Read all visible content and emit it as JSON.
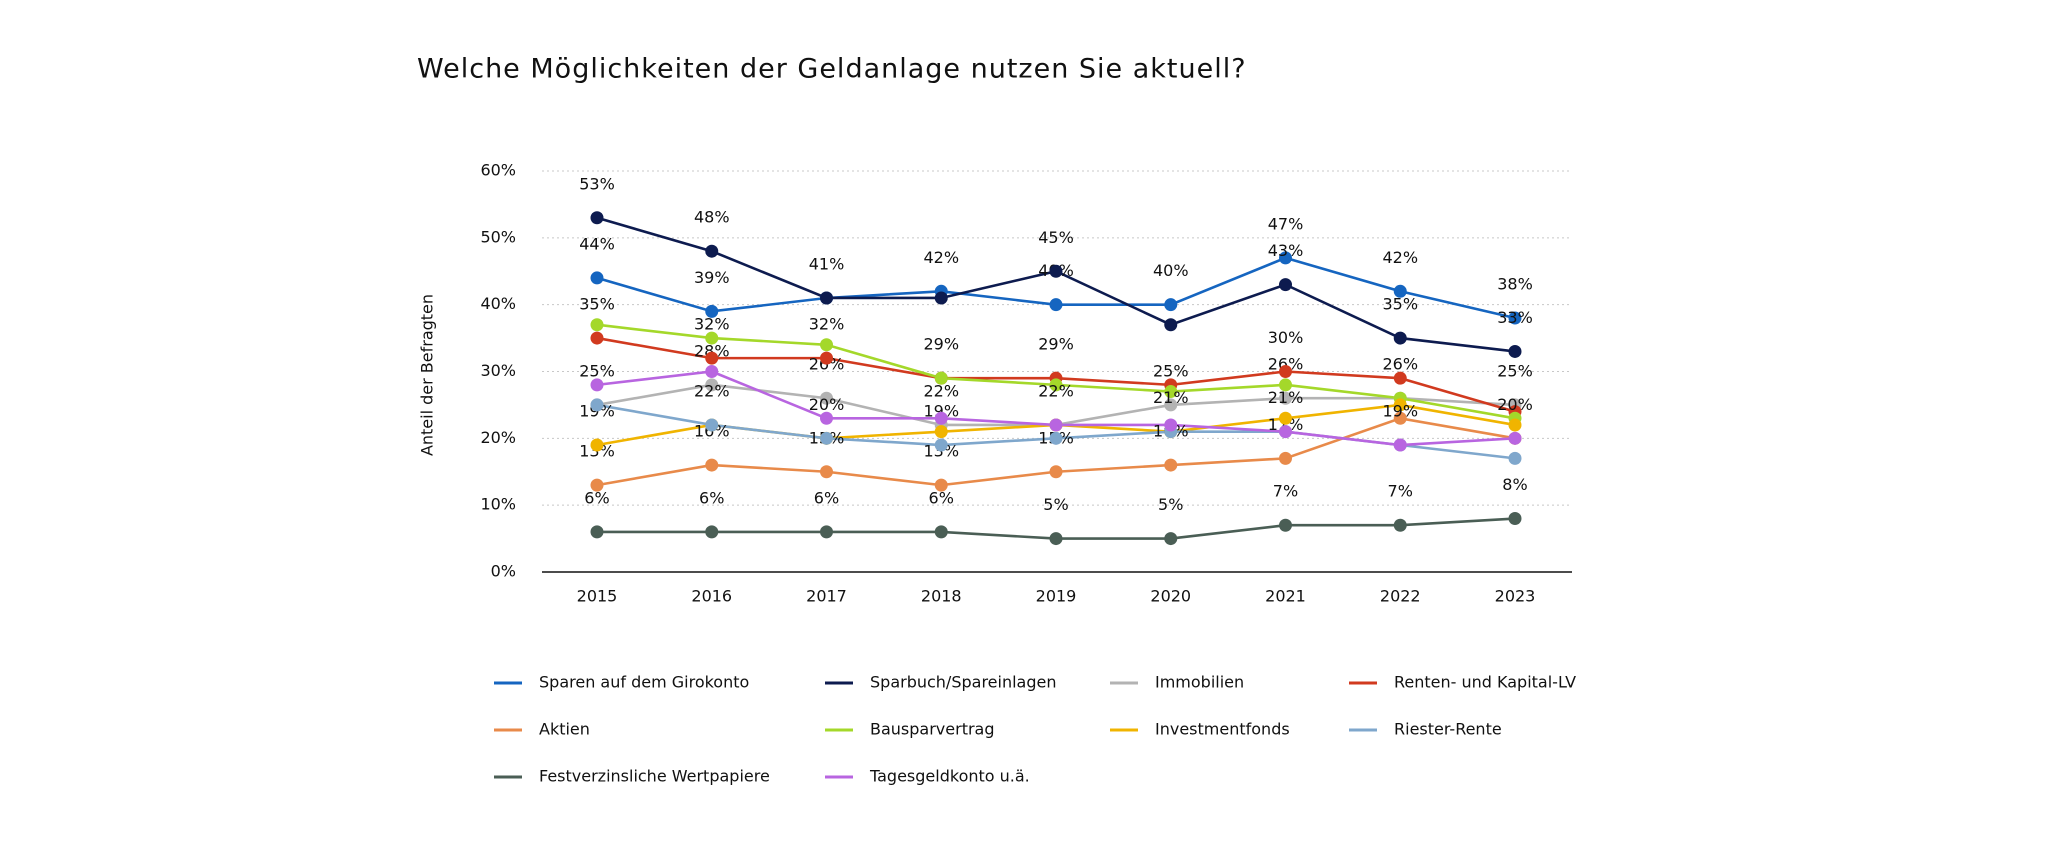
{
  "chart_data": {
    "type": "line",
    "title": "Welche Möglichkeiten der Geldanlage nutzen Sie aktuell?",
    "y_label": "Anteil der Befragten",
    "categories": [
      "2015",
      "2016",
      "2017",
      "2018",
      "2019",
      "2020",
      "2021",
      "2022",
      "2023"
    ],
    "ylim": [
      0,
      60
    ],
    "yticks": [
      {
        "value": 0,
        "label": "0%"
      },
      {
        "value": 10,
        "label": "10%"
      },
      {
        "value": 20,
        "label": "20%"
      },
      {
        "value": 30,
        "label": "30%"
      },
      {
        "value": 40,
        "label": "40%"
      },
      {
        "value": 50,
        "label": "50%"
      },
      {
        "value": 60,
        "label": "60%"
      }
    ],
    "grid": true,
    "legend": "bottom",
    "series": [
      {
        "name": "Sparen auf  dem Girokonto",
        "color": "#1565c0",
        "values": [
          44,
          39,
          41,
          42,
          40,
          40,
          47,
          42,
          38
        ],
        "value_labels": [
          "44%",
          "39%",
          null,
          "42%",
          "40%",
          "40%",
          "47%",
          "42%",
          "38%"
        ]
      },
      {
        "name": "Sparbuch/Spareinlagen",
        "color": "#0d1b4f",
        "values": [
          53,
          48,
          41,
          41,
          45,
          37,
          43,
          35,
          33
        ],
        "value_labels": [
          "53%",
          "48%",
          "41%",
          null,
          "45%",
          null,
          "43%",
          "35%",
          "33%"
        ]
      },
      {
        "name": "Immobilien",
        "color": "#b3b3b3",
        "values": [
          25,
          28,
          26,
          22,
          22,
          25,
          26,
          26,
          25
        ],
        "value_labels": [
          "25%",
          "28%",
          "26%",
          "22%",
          null,
          "25%",
          "26%",
          "26%",
          "25%"
        ]
      },
      {
        "name": "Renten- und Kapital-LV",
        "color": "#d13a1f",
        "values": [
          35,
          32,
          32,
          29,
          29,
          28,
          30,
          29,
          24
        ],
        "value_labels": [
          "35%",
          "32%",
          "32%",
          "29%",
          "29%",
          null,
          "30%",
          null,
          null
        ]
      },
      {
        "name": "Aktien",
        "color": "#e88a4a",
        "values": [
          13,
          16,
          15,
          13,
          15,
          16,
          17,
          23,
          20
        ],
        "value_labels": [
          "13%",
          "16%",
          "15%",
          "13%",
          "15%",
          "16%",
          "17%",
          null,
          "20%"
        ]
      },
      {
        "name": "Bausparvertrag",
        "color": "#a4d82a",
        "values": [
          37,
          35,
          34,
          29,
          28,
          27,
          28,
          26,
          23
        ]
      },
      {
        "name": "Investmentfonds",
        "color": "#f0b400",
        "values": [
          19,
          22,
          20,
          21,
          22,
          21,
          23,
          25,
          22
        ],
        "value_labels": [
          "19%",
          "22%",
          "20%",
          null,
          "22%",
          "21%",
          null,
          null,
          null
        ]
      },
      {
        "name": "Riester-Rente",
        "color": "#7fa7cc",
        "values": [
          25,
          22,
          20,
          19,
          20,
          21,
          21,
          19,
          17
        ],
        "value_labels": [
          null,
          null,
          null,
          "19%",
          null,
          null,
          "21%",
          "19%",
          null
        ]
      },
      {
        "name": "Festverzinsliche Wertpapiere",
        "color": "#4a5e55",
        "values": [
          6,
          6,
          6,
          6,
          5,
          5,
          7,
          7,
          8
        ],
        "value_labels": [
          "6%",
          "6%",
          "6%",
          "6%",
          "5%",
          "5%",
          "7%",
          "7%",
          "8%"
        ]
      },
      {
        "name": "Tagesgeldkonto u.ä.",
        "color": "#b865e0",
        "values": [
          28,
          30,
          23,
          23,
          22,
          22,
          21,
          19,
          20
        ]
      }
    ]
  }
}
